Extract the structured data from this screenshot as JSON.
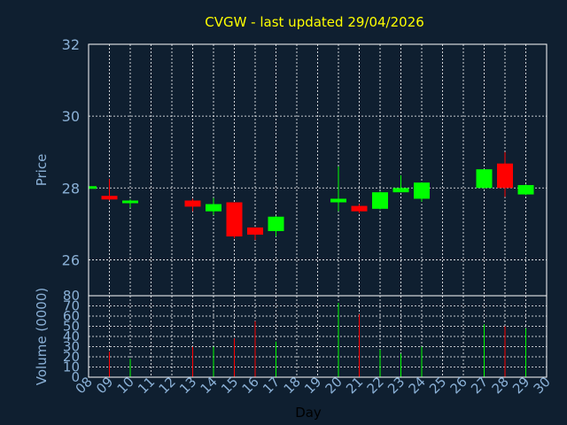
{
  "chart_data": {
    "type": "candlestick",
    "title": "CVGW - last updated 29/04/2026",
    "xlabel": "Day",
    "price_panel": {
      "ylabel": "Price",
      "ylim": [
        25,
        32
      ],
      "yticks": [
        "26",
        "28",
        "30",
        "32"
      ],
      "grid": true
    },
    "volume_panel": {
      "ylabel": "Volume (0000)",
      "ylim": [
        0,
        80
      ],
      "yticks": [
        "0",
        "10",
        "20",
        "30",
        "40",
        "50",
        "60",
        "70",
        "80"
      ],
      "grid": true
    },
    "x_ticks": [
      "08",
      "09",
      "10",
      "11",
      "12",
      "13",
      "14",
      "15",
      "16",
      "17",
      "18",
      "19",
      "20",
      "21",
      "22",
      "23",
      "24",
      "25",
      "26",
      "27",
      "28",
      "29",
      "30"
    ],
    "candles": [
      {
        "day": 8,
        "open": 28.05,
        "high": 28.08,
        "low": 28.02,
        "close": 28.05,
        "volume": 0
      },
      {
        "day": 9,
        "open": 27.78,
        "high": 28.25,
        "low": 27.65,
        "close": 27.68,
        "volume": 25
      },
      {
        "day": 10,
        "open": 27.58,
        "high": 27.68,
        "low": 27.45,
        "close": 27.65,
        "volume": 18
      },
      {
        "day": 13,
        "open": 27.65,
        "high": 27.7,
        "low": 27.35,
        "close": 27.48,
        "volume": 30
      },
      {
        "day": 14,
        "open": 27.35,
        "high": 27.72,
        "low": 27.25,
        "close": 27.55,
        "volume": 30
      },
      {
        "day": 15,
        "open": 27.6,
        "high": 27.6,
        "low": 26.6,
        "close": 26.65,
        "volume": 38
      },
      {
        "day": 16,
        "open": 26.9,
        "high": 26.9,
        "low": 26.55,
        "close": 26.7,
        "volume": 55
      },
      {
        "day": 17,
        "open": 26.8,
        "high": 27.22,
        "low": 26.65,
        "close": 27.2,
        "volume": 35
      },
      {
        "day": 20,
        "open": 27.6,
        "high": 28.6,
        "low": 27.35,
        "close": 27.7,
        "volume": 73
      },
      {
        "day": 21,
        "open": 27.5,
        "high": 27.55,
        "low": 27.3,
        "close": 27.35,
        "volume": 62
      },
      {
        "day": 22,
        "open": 27.42,
        "high": 27.9,
        "low": 27.4,
        "close": 27.88,
        "volume": 27
      },
      {
        "day": 23,
        "open": 27.88,
        "high": 28.35,
        "low": 27.88,
        "close": 28.0,
        "volume": 23
      },
      {
        "day": 24,
        "open": 27.7,
        "high": 28.15,
        "low": 27.62,
        "close": 28.15,
        "volume": 30
      },
      {
        "day": 27,
        "open": 28.0,
        "high": 28.52,
        "low": 27.98,
        "close": 28.52,
        "volume": 52
      },
      {
        "day": 28,
        "open": 28.68,
        "high": 29.0,
        "low": 27.75,
        "close": 28.0,
        "volume": 50
      },
      {
        "day": 29,
        "open": 27.82,
        "high": 28.1,
        "low": 27.8,
        "close": 28.08,
        "volume": 48
      }
    ],
    "colors": {
      "up": "#00ff00",
      "down": "#ff0000",
      "text": "#8ab0d6",
      "title": "#ffff00",
      "grid": "#ffffff",
      "background": "#0f1f30",
      "xlabel": "#000000"
    }
  }
}
